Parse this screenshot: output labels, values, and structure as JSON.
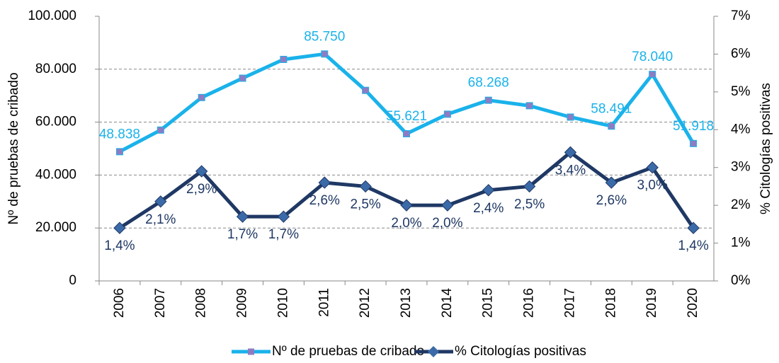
{
  "chart_data": {
    "type": "line",
    "categories": [
      "2006",
      "2007",
      "2008",
      "2009",
      "2010",
      "2011",
      "2012",
      "2013",
      "2014",
      "2015",
      "2016",
      "2017",
      "2018",
      "2019",
      "2020"
    ],
    "ylabel": "Nº de pruebas de cribado",
    "y2label": "% Citologías positivas",
    "ylim": [
      0,
      100000
    ],
    "yticks": [
      0,
      {
        "value": 20000,
        "label": "20.000"
      },
      {
        "value": 40000,
        "label": "40.000"
      },
      {
        "value": 60000,
        "label": "60.000"
      },
      {
        "value": 80000,
        "label": "80.000"
      },
      {
        "value": 100000,
        "label": "100.000"
      }
    ],
    "y2lim": [
      0,
      7
    ],
    "y2ticks": [
      {
        "value": 0,
        "label": "0%"
      },
      {
        "value": 1,
        "label": "1%"
      },
      {
        "value": 2,
        "label": "2%"
      },
      {
        "value": 3,
        "label": "3%"
      },
      {
        "value": 4,
        "label": "4%"
      },
      {
        "value": 5,
        "label": "5%"
      },
      {
        "value": 6,
        "label": "6%"
      },
      {
        "value": 7,
        "label": "7%"
      }
    ],
    "grid": true,
    "legend": "bottom",
    "series": [
      {
        "name": "Nº de pruebas de cribado",
        "color": "#1ab2ea",
        "marker_color": "#8e7cc3",
        "values": [
          48838,
          57000,
          69300,
          76600,
          83700,
          85750,
          72000,
          55621,
          63000,
          68268,
          66200,
          61900,
          58491,
          78040,
          51918
        ],
        "value_labels": [
          "48.838",
          null,
          null,
          null,
          null,
          "85.750",
          null,
          "55.621",
          null,
          "68.268",
          null,
          null,
          "58.491",
          "78.040",
          "51.918"
        ],
        "label_color": "#1ab2ea"
      },
      {
        "name": "% Citologías positivas",
        "color": "#1f3864",
        "marker_color": "#3b6aa8",
        "axis": "y2",
        "values": [
          1.4,
          2.1,
          2.9,
          1.7,
          1.7,
          2.6,
          2.5,
          2.0,
          2.0,
          2.4,
          2.5,
          3.4,
          2.6,
          3.0,
          1.4
        ],
        "value_labels": [
          "1,4%",
          "2,1%",
          "2,9%",
          "1,7%",
          "1,7%",
          "2,6%",
          "2,5%",
          "2,0%",
          "2,0%",
          "2,4%",
          "2,5%",
          "3,4%",
          "2,6%",
          "3,0%",
          "1,4%"
        ],
        "label_color": "#1f3864"
      }
    ]
  }
}
